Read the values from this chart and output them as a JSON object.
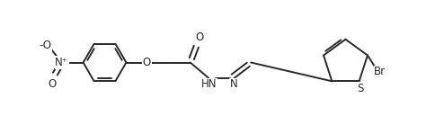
{
  "background_color": "#ffffff",
  "line_color": "#2a2a2a",
  "line_width": 1.4,
  "label_fontsize": 8.5,
  "label_color": "#2a2a2a",
  "figsize": [
    4.84,
    1.39
  ],
  "dpi": 100,
  "xlim": [
    0,
    10.5
  ],
  "ylim": [
    0,
    2.9
  ]
}
